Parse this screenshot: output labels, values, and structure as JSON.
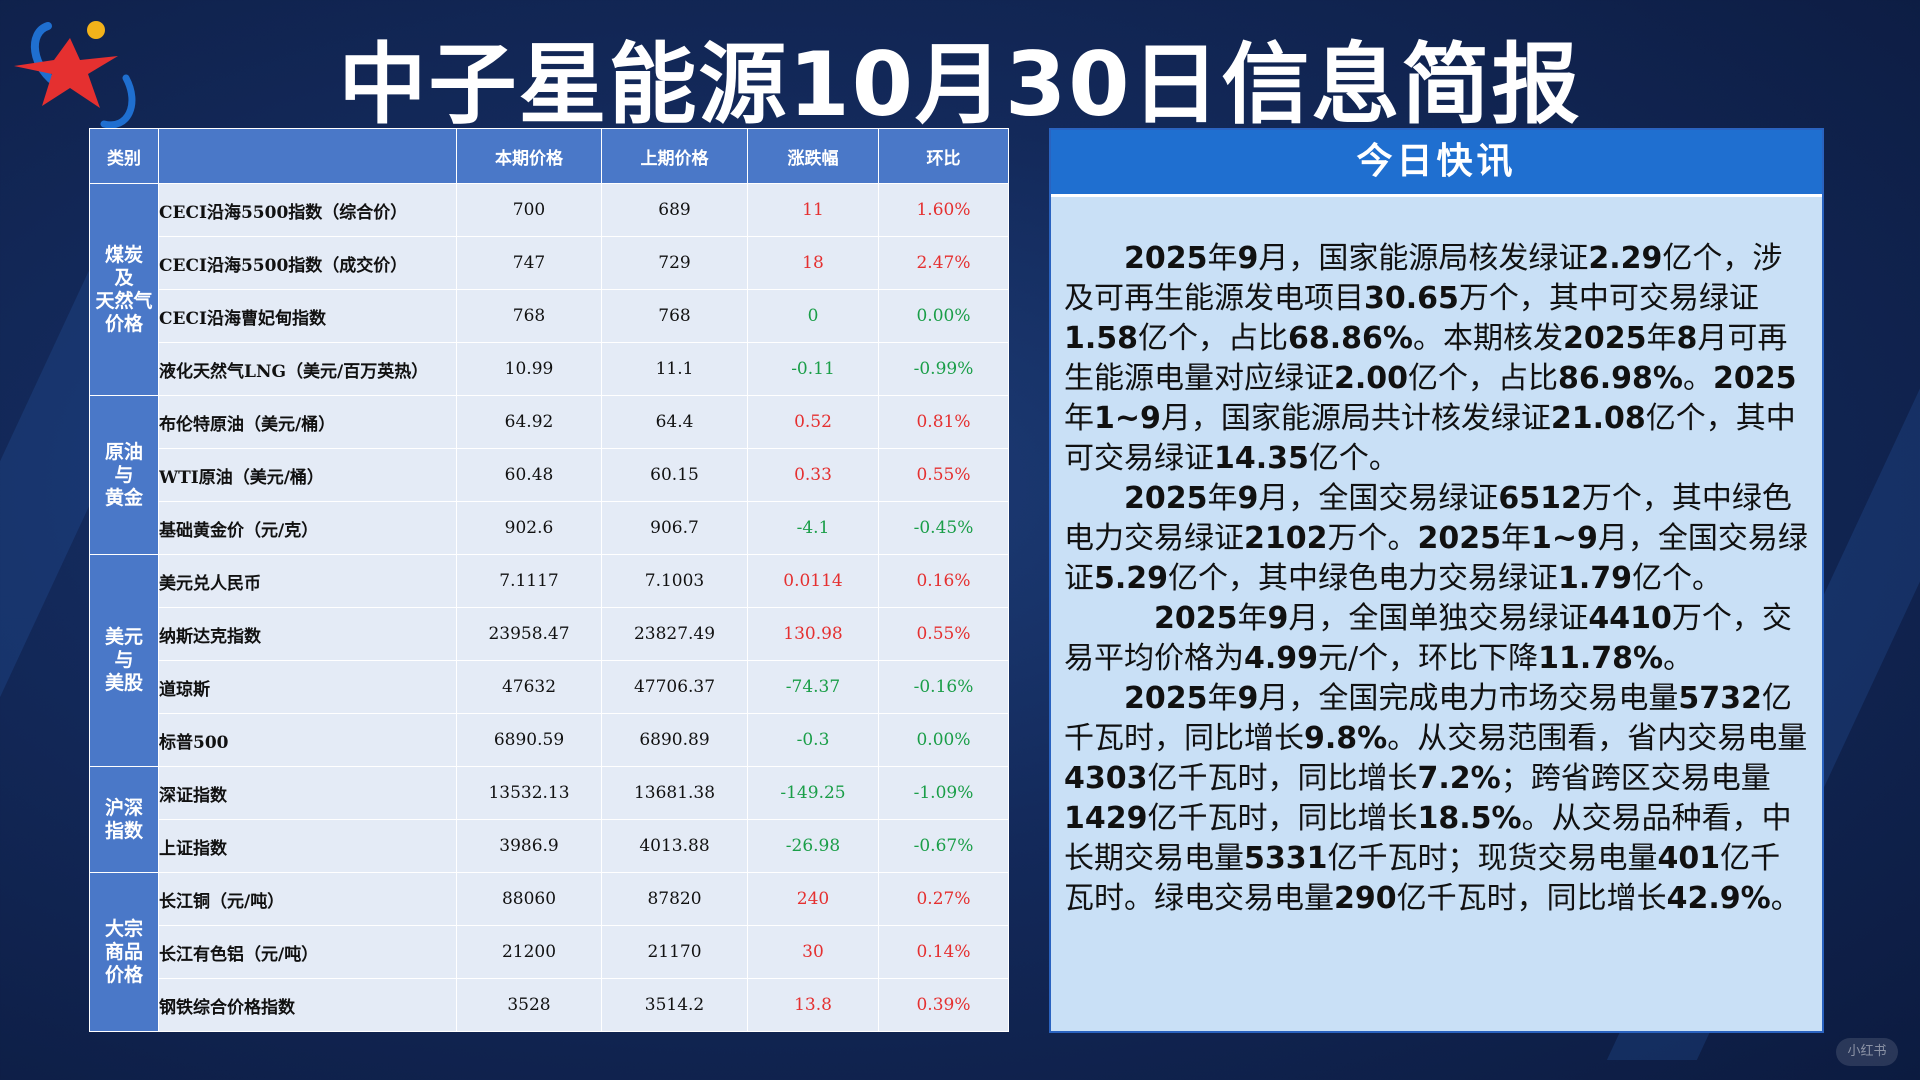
{
  "title": "中子星能源10月30日信息简报",
  "table": {
    "headers": [
      "类别",
      "",
      "本期价格",
      "上期价格",
      "涨跌幅",
      "环比"
    ],
    "groups": [
      {
        "category": "煤炭\n及\n天然气\n价格",
        "rows": [
          {
            "name": "CECI沿海5500指数（综合价）",
            "current": "700",
            "previous": "689",
            "change": "11",
            "mom": "1.60%",
            "trend": "up"
          },
          {
            "name": "CECI沿海5500指数（成交价）",
            "current": "747",
            "previous": "729",
            "change": "18",
            "mom": "2.47%",
            "trend": "up"
          },
          {
            "name": "CECI沿海曹妃甸指数",
            "current": "768",
            "previous": "768",
            "change": "0",
            "mom": "0.00%",
            "trend": "down"
          },
          {
            "name": "液化天然气LNG（美元/百万英热）",
            "current": "10.99",
            "previous": "11.1",
            "change": "-0.11",
            "mom": "-0.99%",
            "trend": "down"
          }
        ]
      },
      {
        "category": "原油\n与\n黄金",
        "rows": [
          {
            "name": "布伦特原油（美元/桶）",
            "current": "64.92",
            "previous": "64.4",
            "change": "0.52",
            "mom": "0.81%",
            "trend": "up"
          },
          {
            "name": "WTI原油（美元/桶）",
            "current": "60.48",
            "previous": "60.15",
            "change": "0.33",
            "mom": "0.55%",
            "trend": "up"
          },
          {
            "name": "基础黄金价（元/克）",
            "current": "902.6",
            "previous": "906.7",
            "change": "-4.1",
            "mom": "-0.45%",
            "trend": "down"
          }
        ]
      },
      {
        "category": "美元\n与\n美股",
        "rows": [
          {
            "name": "美元兑人民币",
            "current": "7.1117",
            "previous": "7.1003",
            "change": "0.0114",
            "mom": "0.16%",
            "trend": "up"
          },
          {
            "name": "纳斯达克指数",
            "current": "23958.47",
            "previous": "23827.49",
            "change": "130.98",
            "mom": "0.55%",
            "trend": "up"
          },
          {
            "name": "道琼斯",
            "current": "47632",
            "previous": "47706.37",
            "change": "-74.37",
            "mom": "-0.16%",
            "trend": "down"
          },
          {
            "name": "标普500",
            "current": "6890.59",
            "previous": "6890.89",
            "change": "-0.3",
            "mom": "0.00%",
            "trend": "down"
          }
        ]
      },
      {
        "category": "沪深\n指数",
        "rows": [
          {
            "name": "深证指数",
            "current": "13532.13",
            "previous": "13681.38",
            "change": "-149.25",
            "mom": "-1.09%",
            "trend": "down"
          },
          {
            "name": "上证指数",
            "current": "3986.9",
            "previous": "4013.88",
            "change": "-26.98",
            "mom": "-0.67%",
            "trend": "down"
          }
        ]
      },
      {
        "category": "大宗\n商品\n价格",
        "rows": [
          {
            "name": "长江铜（元/吨）",
            "current": "88060",
            "previous": "87820",
            "change": "240",
            "mom": "0.27%",
            "trend": "up"
          },
          {
            "name": "长江有色铝（元/吨）",
            "current": "21200",
            "previous": "21170",
            "change": "30",
            "mom": "0.14%",
            "trend": "up"
          },
          {
            "name": "钢铁综合价格指数",
            "current": "3528",
            "previous": "3514.2",
            "change": "13.8",
            "mom": "0.39%",
            "trend": "up"
          }
        ]
      }
    ]
  },
  "news": {
    "header": "今日快讯",
    "paragraphs": [
      [
        {
          "t": "　　",
          "b": false
        },
        {
          "t": "2025",
          "b": true
        },
        {
          "t": "年",
          "b": false
        },
        {
          "t": "9",
          "b": true
        },
        {
          "t": "月，国家能源局核发绿证",
          "b": false
        },
        {
          "t": "2.29",
          "b": true
        },
        {
          "t": "亿个，涉及可再生能源发电项目",
          "b": false
        },
        {
          "t": "30.65",
          "b": true
        },
        {
          "t": "万个，其中可交易绿证",
          "b": false
        },
        {
          "t": "1.58",
          "b": true
        },
        {
          "t": "亿个，占比",
          "b": false
        },
        {
          "t": "68.86%",
          "b": true
        },
        {
          "t": "。本期核发",
          "b": false
        },
        {
          "t": "2025",
          "b": true
        },
        {
          "t": "年",
          "b": false
        },
        {
          "t": "8",
          "b": true
        },
        {
          "t": "月可再生能源电量对应绿证",
          "b": false
        },
        {
          "t": "2.00",
          "b": true
        },
        {
          "t": "亿个，占比",
          "b": false
        },
        {
          "t": "86.98%",
          "b": true
        },
        {
          "t": "。",
          "b": false
        },
        {
          "t": "2025",
          "b": true
        },
        {
          "t": "年",
          "b": false
        },
        {
          "t": "1~9",
          "b": true
        },
        {
          "t": "月，国家能源局共计核发绿证",
          "b": false
        },
        {
          "t": "21.08",
          "b": true
        },
        {
          "t": "亿个，其中可交易绿证",
          "b": false
        },
        {
          "t": "14.35",
          "b": true
        },
        {
          "t": "亿个。",
          "b": false
        }
      ],
      [
        {
          "t": "　　",
          "b": false
        },
        {
          "t": "2025",
          "b": true
        },
        {
          "t": "年",
          "b": false
        },
        {
          "t": "9",
          "b": true
        },
        {
          "t": "月，全国交易绿证",
          "b": false
        },
        {
          "t": "6512",
          "b": true
        },
        {
          "t": "万个，其中绿色电力交易绿证",
          "b": false
        },
        {
          "t": "2102",
          "b": true
        },
        {
          "t": "万个。",
          "b": false
        },
        {
          "t": "2025",
          "b": true
        },
        {
          "t": "年",
          "b": false
        },
        {
          "t": "1~9",
          "b": true
        },
        {
          "t": "月，全国交易绿证",
          "b": false
        },
        {
          "t": "5.29",
          "b": true
        },
        {
          "t": "亿个，其中绿色电力交易绿证",
          "b": false
        },
        {
          "t": "1.79",
          "b": true
        },
        {
          "t": "亿个。",
          "b": false
        }
      ],
      [
        {
          "t": "　　　",
          "b": false
        },
        {
          "t": "2025",
          "b": true
        },
        {
          "t": "年",
          "b": false
        },
        {
          "t": "9",
          "b": true
        },
        {
          "t": "月，全国单独交易绿证",
          "b": false
        },
        {
          "t": "4410",
          "b": true
        },
        {
          "t": "万个，交易平均价格为",
          "b": false
        },
        {
          "t": "4.99",
          "b": true
        },
        {
          "t": "元/个，环比下降",
          "b": false
        },
        {
          "t": "11.78%",
          "b": true
        },
        {
          "t": "。",
          "b": false
        }
      ],
      [
        {
          "t": "　　",
          "b": false
        },
        {
          "t": "2025",
          "b": true
        },
        {
          "t": "年",
          "b": false
        },
        {
          "t": "9",
          "b": true
        },
        {
          "t": "月，全国完成电力市场交易电量",
          "b": false
        },
        {
          "t": "5732",
          "b": true
        },
        {
          "t": "亿千瓦时，同比增长",
          "b": false
        },
        {
          "t": "9.8%",
          "b": true
        },
        {
          "t": "。从交易范围看，省内交易电量",
          "b": false
        },
        {
          "t": "4303",
          "b": true
        },
        {
          "t": "亿千瓦时，同比增长",
          "b": false
        },
        {
          "t": "7.2%",
          "b": true
        },
        {
          "t": "；跨省跨区交易电量",
          "b": false
        },
        {
          "t": "1429",
          "b": true
        },
        {
          "t": "亿千瓦时，同比增长",
          "b": false
        },
        {
          "t": "18.5%",
          "b": true
        },
        {
          "t": "。从交易品种看，中长期交易电量",
          "b": false
        },
        {
          "t": "5331",
          "b": true
        },
        {
          "t": "亿千瓦时；现货交易电量",
          "b": false
        },
        {
          "t": "401",
          "b": true
        },
        {
          "t": "亿千瓦时。绿电交易电量",
          "b": false
        },
        {
          "t": "290",
          "b": true
        },
        {
          "t": "亿千瓦时，同比增长",
          "b": false
        },
        {
          "t": "42.9%",
          "b": true
        },
        {
          "t": "。",
          "b": false
        }
      ]
    ]
  },
  "watermark": "小红书",
  "colors": {
    "up": "#e53030",
    "down": "#1a9e48",
    "header_blue": "#4a78c8",
    "news_bg": "#c9e0f6"
  },
  "icons": {
    "logo": "star-orbit-logo"
  }
}
